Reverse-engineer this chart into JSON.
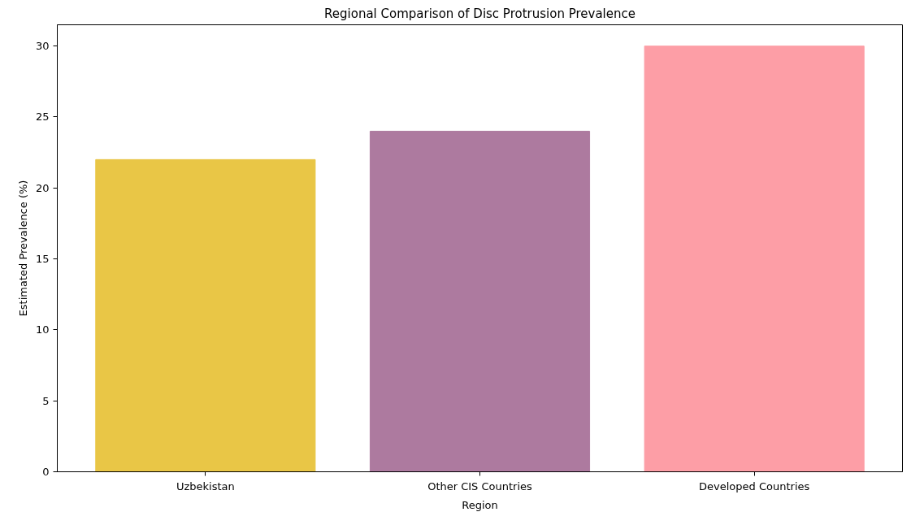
{
  "chart_data": {
    "type": "bar",
    "title": "Regional Comparison of Disc Protrusion Prevalence",
    "xlabel": "Region",
    "ylabel": "Estimated Prevalence (%)",
    "categories": [
      "Uzbekistan",
      "Other CIS Countries",
      "Developed Countries"
    ],
    "values": [
      22,
      24,
      30
    ],
    "colors": [
      "#e9c646",
      "#ad7a9f",
      "#fd9ea6"
    ],
    "ylim": [
      0,
      31.5
    ],
    "yticks": [
      0,
      5,
      10,
      15,
      20,
      25,
      30
    ],
    "grid": false
  }
}
